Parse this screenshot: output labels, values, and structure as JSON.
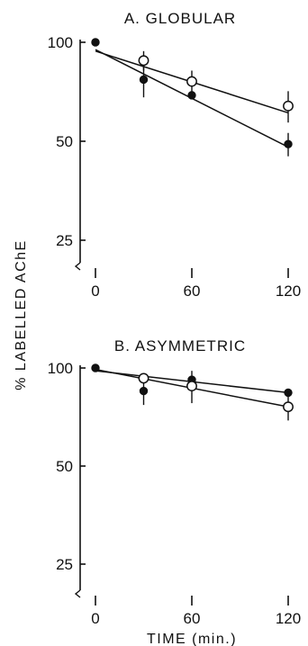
{
  "figure": {
    "ylabel": "% LABELLED AChE",
    "xlabel": "TIME (min.)"
  },
  "colors": {
    "ink": "#111111",
    "open_marker_fill": "#ffffff",
    "background": "#ffffff"
  },
  "chart_data": [
    {
      "type": "scatter",
      "title": "A. GLOBULAR",
      "xlabel": "",
      "ylabel": "% LABELLED AChE",
      "y_scale": "log",
      "xlim": [
        0,
        120
      ],
      "ylim": [
        20,
        100
      ],
      "x_ticks": [
        0,
        60,
        120
      ],
      "x_tick_labels": [
        "0",
        "60",
        "120"
      ],
      "y_ticks": [
        100,
        50,
        25
      ],
      "y_tick_labels": [
        "100",
        "50",
        "25"
      ],
      "grid": false,
      "series": [
        {
          "marker": "filled-circle",
          "x": [
            0,
            30,
            60,
            120
          ],
          "y": [
            100,
            77,
            69,
            49
          ],
          "error": [
            0,
            9,
            0,
            4
          ],
          "fit": [
            [
              0,
              95
            ],
            [
              120,
              48
            ]
          ]
        },
        {
          "marker": "open-circle",
          "x": [
            30,
            60,
            120
          ],
          "y": [
            88,
            76,
            64
          ],
          "error": [
            6,
            6,
            7
          ],
          "fit": [
            [
              0,
              94
            ],
            [
              120,
              61
            ]
          ]
        }
      ]
    },
    {
      "type": "scatter",
      "title": "B. ASYMMETRIC",
      "xlabel": "TIME (min.)",
      "ylabel": "% LABELLED AChE",
      "y_scale": "log",
      "xlim": [
        0,
        120
      ],
      "ylim": [
        20,
        100
      ],
      "x_ticks": [
        0,
        60,
        120
      ],
      "x_tick_labels": [
        "0",
        "60",
        "120"
      ],
      "y_ticks": [
        100,
        50,
        25
      ],
      "y_tick_labels": [
        "100",
        "50",
        "25"
      ],
      "grid": false,
      "series": [
        {
          "marker": "filled-circle",
          "x": [
            0,
            30,
            60,
            120
          ],
          "y": [
            100,
            85,
            92,
            84
          ],
          "error": [
            0,
            8,
            0,
            0
          ],
          "fit": [
            [
              0,
              98
            ],
            [
              120,
              84
            ]
          ]
        },
        {
          "marker": "open-circle",
          "x": [
            30,
            60,
            120
          ],
          "y": [
            93,
            88,
            76
          ],
          "error": [
            3,
            10,
            7
          ],
          "fit": [
            [
              0,
              99
            ],
            [
              120,
              76
            ]
          ]
        }
      ]
    }
  ]
}
